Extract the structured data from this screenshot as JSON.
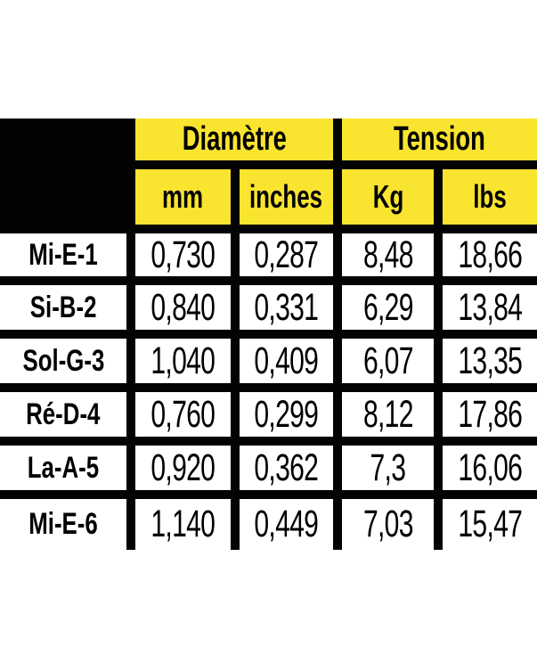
{
  "colors": {
    "accent_yellow": "#F9E42F",
    "table_black": "#030303",
    "background": "#FFFFFF"
  },
  "chart_data": {
    "type": "table",
    "title": "",
    "column_groups": [
      {
        "label": "Diamètre",
        "columns": [
          "mm",
          "inches"
        ]
      },
      {
        "label": "Tension",
        "columns": [
          "Kg",
          "lbs"
        ]
      }
    ],
    "columns": [
      "mm",
      "inches",
      "Kg",
      "lbs"
    ],
    "rows": [
      {
        "label": "Mi-E-1",
        "values": [
          "0,730",
          "0,287",
          "8,48",
          "18,66"
        ]
      },
      {
        "label": "Si-B-2",
        "values": [
          "0,840",
          "0,331",
          "6,29",
          "13,84"
        ]
      },
      {
        "label": "Sol-G-3",
        "values": [
          "1,040",
          "0,409",
          "6,07",
          "13,35"
        ]
      },
      {
        "label": "Ré-D-4",
        "values": [
          "0,760",
          "0,299",
          "8,12",
          "17,86"
        ]
      },
      {
        "label": "La-A-5",
        "values": [
          "0,920",
          "0,362",
          "7,3",
          "16,06"
        ]
      },
      {
        "label": "Mi-E-6",
        "values": [
          "1,140",
          "0,449",
          "7,03",
          "15,47"
        ]
      }
    ]
  }
}
